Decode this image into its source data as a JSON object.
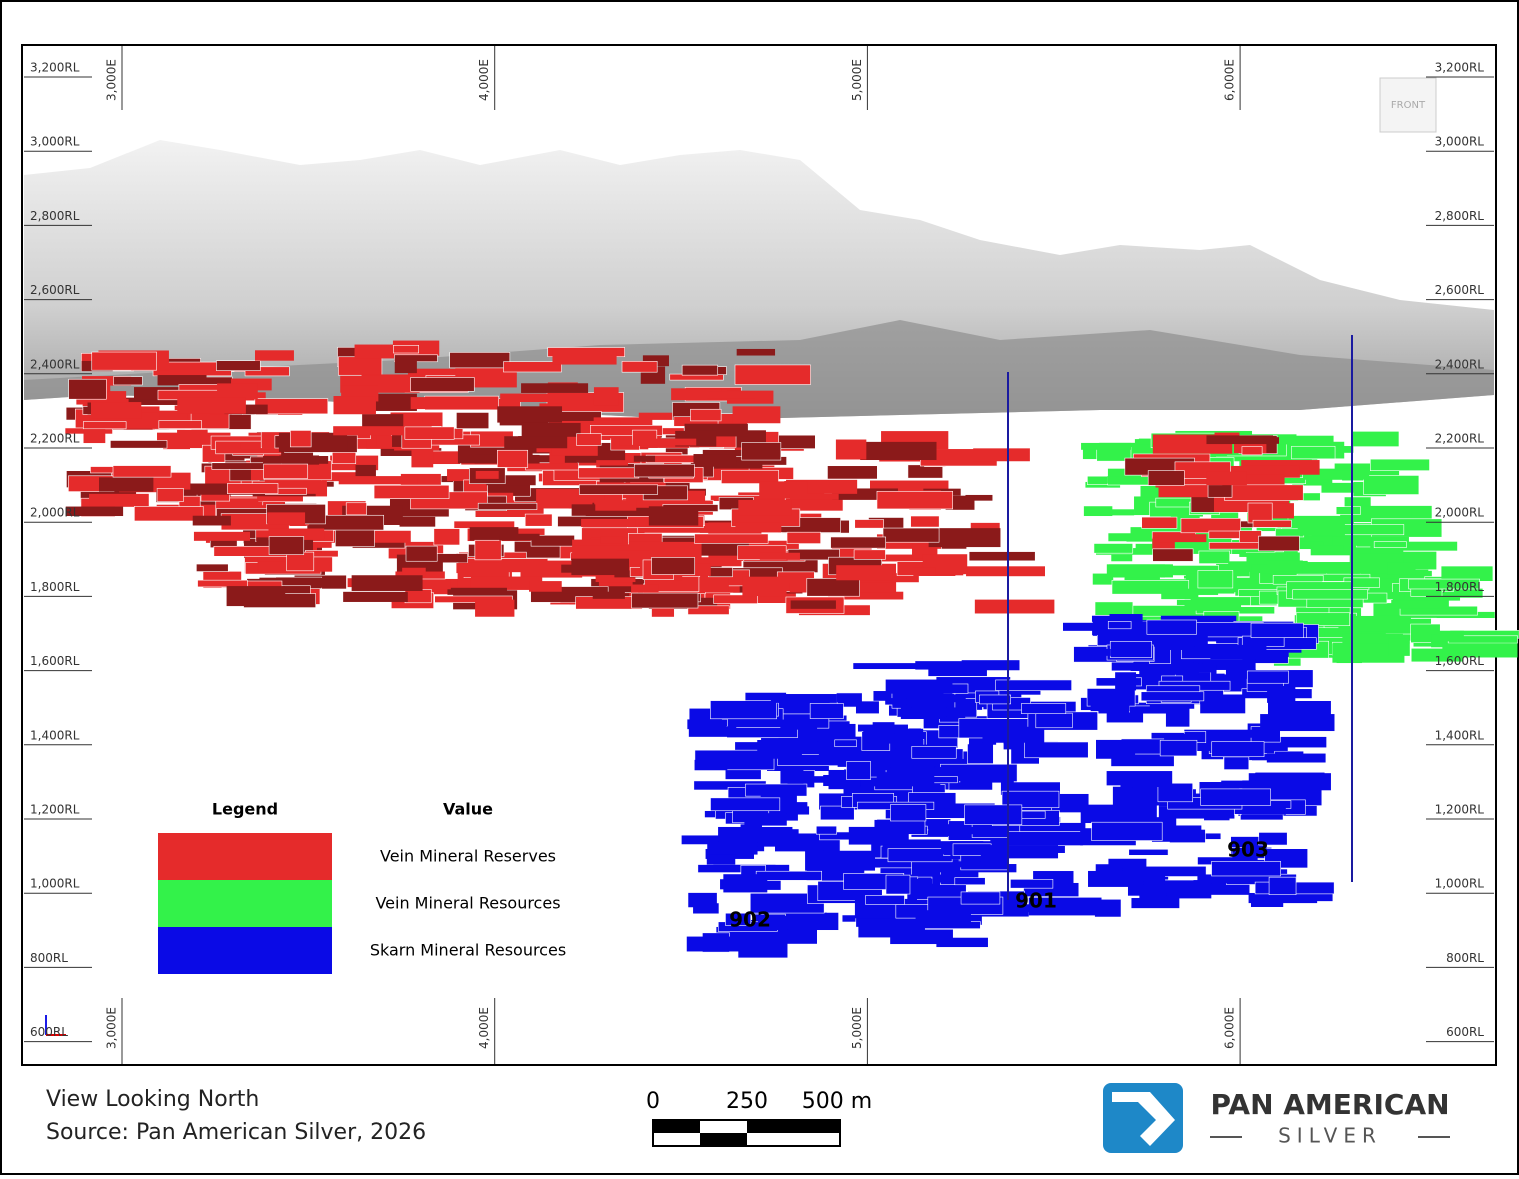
{
  "elevation_labels": [
    "3,200RL",
    "3,000RL",
    "2,800RL",
    "2,600RL",
    "2,400RL",
    "2,200RL",
    "2,000RL",
    "1,800RL",
    "1,600RL",
    "1,400RL",
    "1,200RL",
    "1,000RL",
    "800RL",
    "600RL"
  ],
  "easting_labels": [
    "3,000E",
    "4,000E",
    "5,000E",
    "6,000E"
  ],
  "view_cube": "FRONT",
  "legend": {
    "title": "Legend",
    "header": "Value",
    "items": [
      {
        "label": "Vein Mineral Reserves",
        "color": "#e52b2b"
      },
      {
        "label": "Vein Mineral Resources",
        "color": "#33f24a"
      },
      {
        "label": "Skarn Mineral Resources",
        "color": "#0a0ae6"
      }
    ]
  },
  "zones": [
    "902",
    "901",
    "903"
  ],
  "caption": [
    "View Looking North",
    "Source: Pan American Silver, 2026"
  ],
  "scale_bar": [
    "0",
    "250",
    "500 m"
  ],
  "logo": {
    "name": "PAN AMERICAN",
    "sub": "SILVER"
  }
}
